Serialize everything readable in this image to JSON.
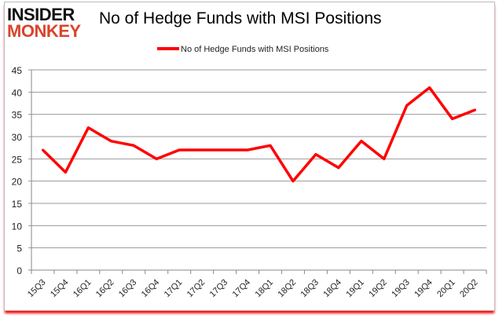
{
  "logo": {
    "line1": "INSIDER",
    "line2": "MONKEY"
  },
  "chart_data": {
    "type": "line",
    "title": "No of Hedge Funds with MSI Positions",
    "xlabel": "",
    "ylabel": "",
    "categories": [
      "15Q3",
      "15Q4",
      "16Q1",
      "16Q2",
      "16Q3",
      "16Q4",
      "17Q1",
      "17Q2",
      "17Q3",
      "17Q4",
      "18Q1",
      "18Q2",
      "18Q3",
      "18Q4",
      "19Q1",
      "19Q2",
      "19Q3",
      "19Q4",
      "20Q1",
      "20Q2"
    ],
    "series": [
      {
        "name": "No of Hedge Funds with MSI Positions",
        "color": "#ff0000",
        "values": [
          27,
          22,
          32,
          29,
          28,
          25,
          27,
          27,
          27,
          27,
          28,
          20,
          26,
          23,
          29,
          25,
          37,
          41,
          34,
          36
        ]
      }
    ],
    "ylim": [
      0,
      45
    ],
    "yticks": [
      0,
      5,
      10,
      15,
      20,
      25,
      30,
      35,
      40,
      45
    ],
    "grid": true,
    "legend": "top"
  }
}
